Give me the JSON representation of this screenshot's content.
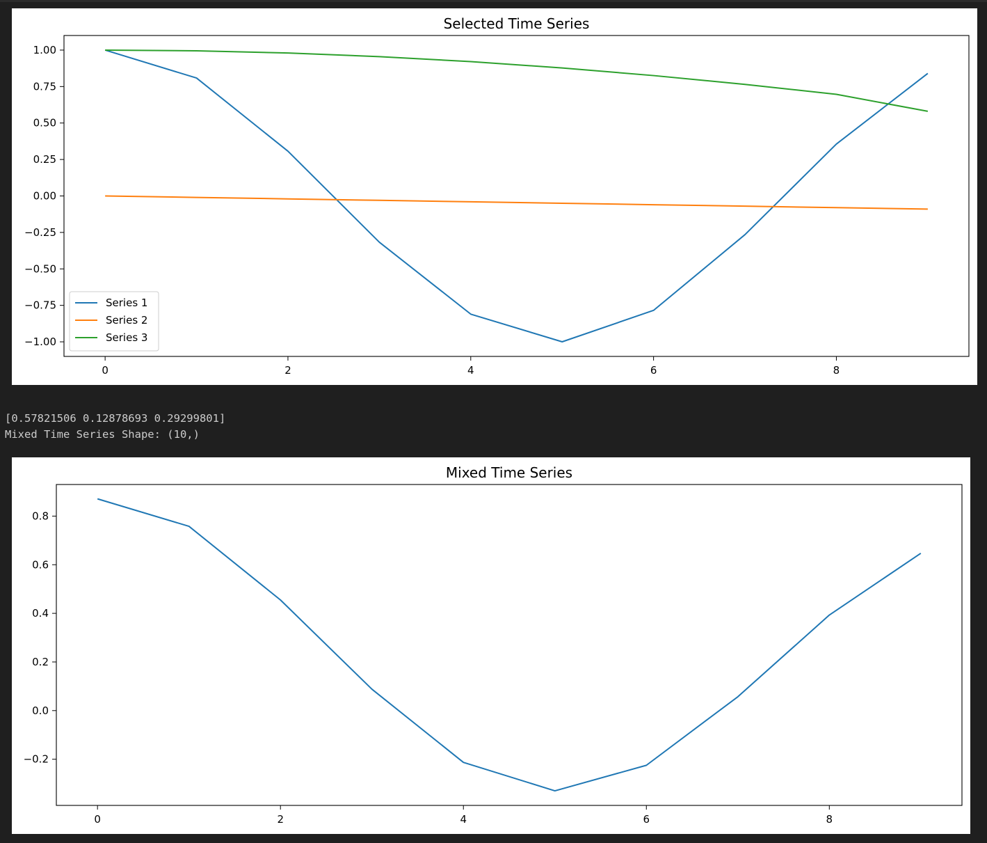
{
  "stdout": {
    "line1": "[0.57821506 0.12878693 0.29299801]",
    "line2": "Mixed Time Series Shape: (10,)"
  },
  "chart_data": [
    {
      "type": "line",
      "title": "Selected Time Series",
      "xlabel": "",
      "ylabel": "",
      "x": [
        0,
        1,
        2,
        3,
        4,
        5,
        6,
        7,
        8,
        9
      ],
      "xlim": [
        -0.45,
        9.45
      ],
      "ylim": [
        -1.1,
        1.1
      ],
      "xticks": [
        0,
        2,
        4,
        6,
        8
      ],
      "yticks": [
        1.0,
        0.75,
        0.5,
        0.25,
        0.0,
        -0.25,
        -0.5,
        -0.75,
        -1.0
      ],
      "ytick_labels": [
        "1.00",
        "0.75",
        "0.50",
        "0.25",
        "0.00",
        "−0.25",
        "−0.50",
        "−0.75",
        "−1.00"
      ],
      "grid": false,
      "legend": "lower-left",
      "series": [
        {
          "name": "Series 1",
          "color": "#1f77b4",
          "values": [
            1.0,
            0.8085,
            0.307,
            -0.317,
            -0.8102,
            -0.9998,
            -0.7843,
            -0.2652,
            0.356,
            0.8402
          ]
        },
        {
          "name": "Series 2",
          "color": "#ff7f0e",
          "values": [
            0.0,
            -0.01,
            -0.02,
            -0.03,
            -0.04,
            -0.05,
            -0.06,
            -0.07,
            -0.08,
            -0.09
          ]
        },
        {
          "name": "Series 3",
          "color": "#2ca02c",
          "values": [
            1.0,
            0.995,
            0.9801,
            0.9553,
            0.9211,
            0.8776,
            0.8253,
            0.7648,
            0.6967,
            0.5802
          ]
        }
      ]
    },
    {
      "type": "line",
      "title": "Mixed Time Series",
      "xlabel": "",
      "ylabel": "",
      "x": [
        0,
        1,
        2,
        3,
        4,
        5,
        6,
        7,
        8,
        9
      ],
      "xlim": [
        -0.45,
        9.45
      ],
      "ylim": [
        -0.39,
        0.93
      ],
      "xticks": [
        0,
        2,
        4,
        6,
        8
      ],
      "yticks": [
        0.8,
        0.6,
        0.4,
        0.2,
        0.0,
        -0.2
      ],
      "ytick_labels": [
        "0.8",
        "0.6",
        "0.4",
        "0.2",
        "0.0",
        "−0.2"
      ],
      "grid": false,
      "series": [
        {
          "color": "#1f77b4",
          "values": [
            0.871,
            0.758,
            0.455,
            0.088,
            -0.213,
            -0.33,
            -0.225,
            0.057,
            0.393,
            0.647
          ]
        }
      ]
    }
  ]
}
